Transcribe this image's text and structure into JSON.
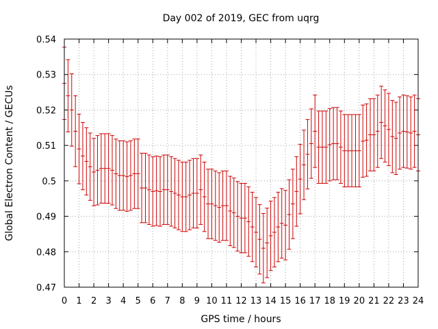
{
  "chart_data": {
    "type": "errorbar",
    "title": "Day 002 of 2019, GEC from uqrg",
    "xlabel": "GPS time / hours",
    "ylabel": "Global Electron Content / GECUs",
    "xlim": [
      0,
      24
    ],
    "ylim": [
      0.47,
      0.54
    ],
    "xticks": [
      "0",
      "1",
      "2",
      "3",
      "4",
      "5",
      "6",
      "7",
      "8",
      "9",
      "10",
      "11",
      "12",
      "13",
      "14",
      "15",
      "16",
      "17",
      "18",
      "19",
      "20",
      "21",
      "22",
      "23",
      "24"
    ],
    "yticks": [
      "0.47",
      "0.48",
      "0.49",
      "0.5",
      "0.51",
      "0.52",
      "0.53",
      "0.54"
    ],
    "grid": true,
    "color": "#cc0000",
    "x": [
      0,
      0.25,
      0.5,
      0.75,
      1,
      1.25,
      1.5,
      1.75,
      2,
      2.25,
      2.5,
      2.75,
      3,
      3.25,
      3.5,
      3.75,
      4,
      4.25,
      4.5,
      4.75,
      5,
      5.25,
      5.5,
      5.75,
      6,
      6.25,
      6.5,
      6.75,
      7,
      7.25,
      7.5,
      7.75,
      8,
      8.25,
      8.5,
      8.75,
      9,
      9.25,
      9.5,
      9.75,
      10,
      10.25,
      10.5,
      10.75,
      11,
      11.25,
      11.5,
      11.75,
      12,
      12.25,
      12.5,
      12.75,
      13,
      13.25,
      13.5,
      13.75,
      14,
      14.25,
      14.5,
      14.75,
      15,
      15.25,
      15.5,
      15.75,
      16,
      16.25,
      16.5,
      16.75,
      17,
      17.25,
      17.5,
      17.75,
      18,
      18.25,
      18.5,
      18.75,
      19,
      19.25,
      19.5,
      19.75,
      20,
      20.25,
      20.5,
      20.75,
      21,
      21.25,
      21.5,
      21.75,
      22,
      22.25,
      22.5,
      22.75,
      23,
      23.25,
      23.5,
      23.75,
      24
    ],
    "y": [
      0.5275,
      0.524,
      0.52,
      0.514,
      0.509,
      0.507,
      0.5055,
      0.504,
      0.5025,
      0.503,
      0.5035,
      0.5035,
      0.5035,
      0.503,
      0.502,
      0.5015,
      0.5015,
      0.5012,
      0.5015,
      0.502,
      0.502,
      0.498,
      0.498,
      0.4975,
      0.497,
      0.4972,
      0.497,
      0.4975,
      0.4975,
      0.497,
      0.4965,
      0.496,
      0.4955,
      0.4955,
      0.496,
      0.4965,
      0.4965,
      0.4975,
      0.4955,
      0.4935,
      0.4935,
      0.493,
      0.4925,
      0.493,
      0.493,
      0.4915,
      0.491,
      0.49,
      0.4895,
      0.4895,
      0.4885,
      0.487,
      0.4855,
      0.4835,
      0.481,
      0.4825,
      0.4845,
      0.4855,
      0.487,
      0.488,
      0.4875,
      0.4905,
      0.4935,
      0.497,
      0.5005,
      0.5045,
      0.5075,
      0.5105,
      0.514,
      0.5095,
      0.5095,
      0.5095,
      0.5102,
      0.5105,
      0.5105,
      0.5095,
      0.5085,
      0.5085,
      0.5085,
      0.5085,
      0.5085,
      0.5112,
      0.5115,
      0.513,
      0.513,
      0.514,
      0.5165,
      0.5155,
      0.5145,
      0.5125,
      0.512,
      0.5135,
      0.514,
      0.5138,
      0.5135,
      0.514,
      0.513
    ],
    "err": [
      0.0102,
      0.0102,
      0.0102,
      0.01,
      0.0098,
      0.0095,
      0.0095,
      0.0095,
      0.0095,
      0.0098,
      0.0098,
      0.0098,
      0.0098,
      0.0098,
      0.0098,
      0.0098,
      0.0098,
      0.0098,
      0.0098,
      0.0098,
      0.0098,
      0.0098,
      0.0098,
      0.0098,
      0.0098,
      0.0098,
      0.0098,
      0.0098,
      0.0098,
      0.0098,
      0.0098,
      0.0098,
      0.0098,
      0.0098,
      0.0098,
      0.0098,
      0.0098,
      0.0098,
      0.0098,
      0.0098,
      0.0098,
      0.0098,
      0.0098,
      0.0098,
      0.0098,
      0.0098,
      0.0098,
      0.0098,
      0.0098,
      0.0098,
      0.0098,
      0.0098,
      0.0098,
      0.0098,
      0.0098,
      0.0098,
      0.0098,
      0.0098,
      0.0098,
      0.0098,
      0.0098,
      0.0098,
      0.0098,
      0.0098,
      0.0098,
      0.0098,
      0.0098,
      0.0098,
      0.0102,
      0.0102,
      0.0102,
      0.0102,
      0.0102,
      0.0102,
      0.0102,
      0.0102,
      0.0102,
      0.0102,
      0.0102,
      0.0102,
      0.0102,
      0.0102,
      0.0102,
      0.0102,
      0.0102,
      0.0102,
      0.0102,
      0.0102,
      0.0102,
      0.0102,
      0.0102,
      0.0102,
      0.0102,
      0.0102,
      0.0102,
      0.0102,
      0.0102
    ]
  }
}
